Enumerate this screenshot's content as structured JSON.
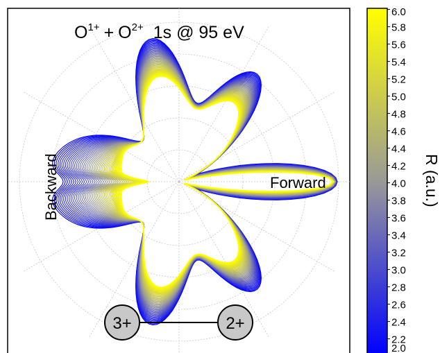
{
  "chart_data": {
    "type": "polar",
    "title": {
      "left_ion": "O",
      "left_charge": "1+",
      "join": "+",
      "right_ion": "O",
      "right_charge": "2+",
      "right_text": "1s @ 95 eV"
    },
    "direction_labels": {
      "forward": "Forward",
      "backward": "Backward"
    },
    "colorbar": {
      "label": "R (a.u.)",
      "range": [
        2.0,
        6.0
      ],
      "ticks": [
        "6.0",
        "5.8",
        "5.6",
        "5.4",
        "5.2",
        "5.0",
        "4.8",
        "4.6",
        "4.4",
        "4.2",
        "4.0",
        "3.8",
        "3.6",
        "3.4",
        "3.2",
        "3.0",
        "2.8",
        "2.6",
        "2.4",
        "2.2",
        "2.0"
      ],
      "colors": {
        "low": "#0000ff",
        "mid": "#999999",
        "high": "#ffff00"
      }
    },
    "molecule": {
      "left_atom": "3+",
      "right_atom": "2+",
      "atom_fill": "#c8c8c8"
    },
    "grid": true,
    "series": {
      "curve_count": 41,
      "r_values_range": [
        2.0,
        6.0
      ]
    }
  }
}
